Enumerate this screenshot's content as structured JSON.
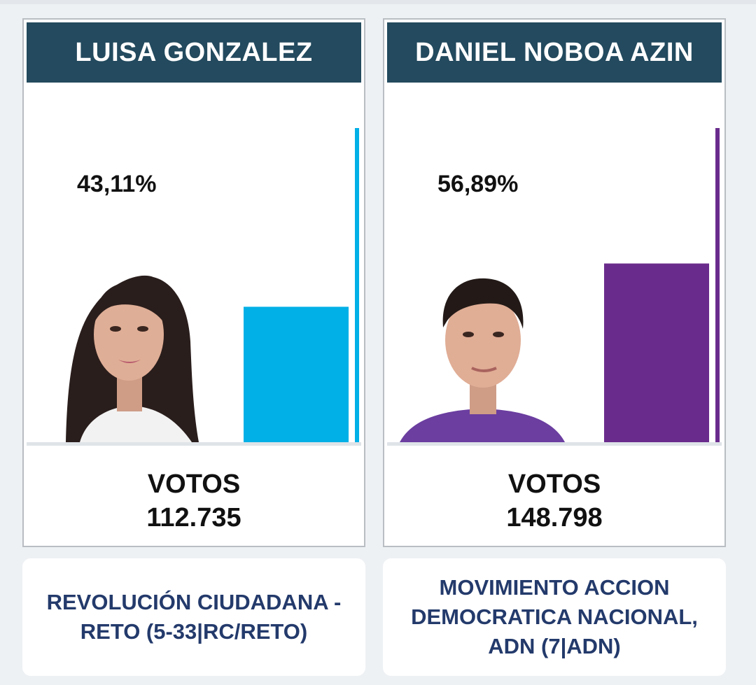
{
  "chart_data": {
    "type": "bar",
    "categories": [
      "LUISA GONZALEZ",
      "DANIEL NOBOA AZIN"
    ],
    "values": [
      43.11,
      56.89
    ],
    "value_labels": [
      "43,11%",
      "56,89%"
    ],
    "votes": [
      "112.735",
      "148.798"
    ],
    "votes_label": "VOTOS",
    "parties": [
      "REVOLUCIÓN CIUDADANA - RETO (5-33|RC/RETO)",
      "MOVIMIENTO ACCION DEMOCRATICA NACIONAL, ADN (7|ADN)"
    ],
    "colors": [
      "#00b0e6",
      "#6a2c8c"
    ],
    "ylim": [
      0,
      100
    ],
    "title": "",
    "xlabel": "",
    "ylabel": ""
  },
  "candidates": [
    {
      "name": "LUISA GONZALEZ",
      "percent": "43,11%",
      "votes_label": "VOTOS",
      "votes": "112.735",
      "party": "REVOLUCIÓN CIUDADANA - RETO (5-33|RC/RETO)",
      "color": "#00b0e6",
      "photo_icon": "woman-portrait-icon"
    },
    {
      "name": "DANIEL NOBOA AZIN",
      "percent": "56,89%",
      "votes_label": "VOTOS",
      "votes": "148.798",
      "party": "MOVIMIENTO ACCION DEMOCRATICA NACIONAL, ADN (7|ADN)",
      "color": "#6a2c8c",
      "photo_icon": "man-portrait-icon"
    }
  ]
}
